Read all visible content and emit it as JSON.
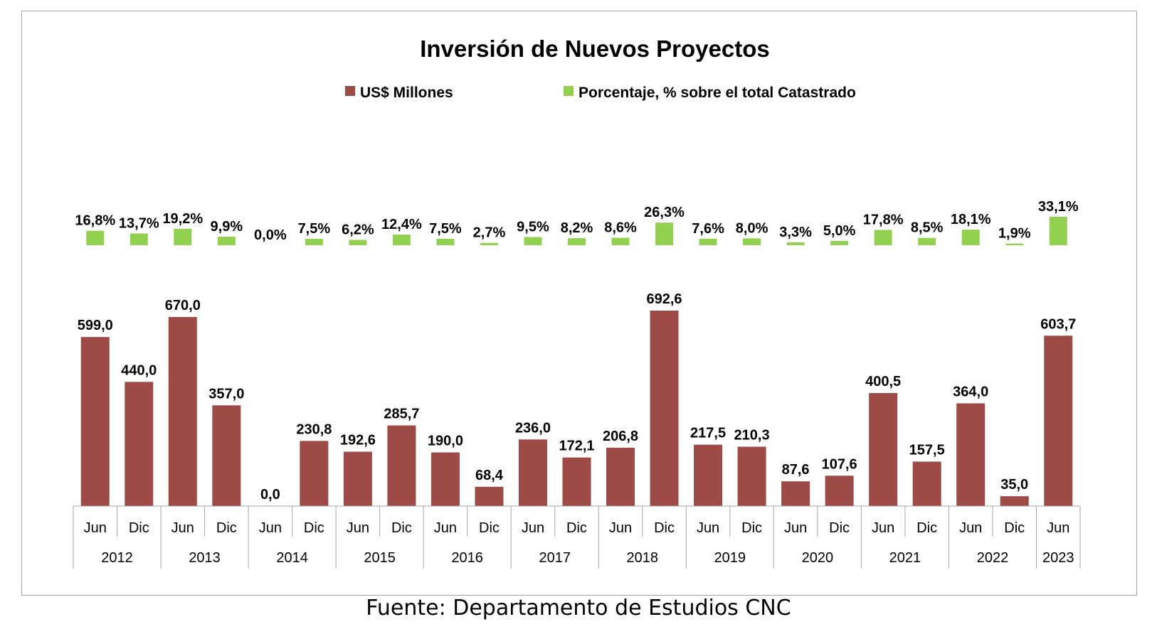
{
  "chart_data": {
    "type": "bar",
    "title": "Inversión de Nuevos Proyectos",
    "legend_position": "top",
    "categories": [
      {
        "period": "Jun",
        "year": "2012"
      },
      {
        "period": "Dic",
        "year": "2012"
      },
      {
        "period": "Jun",
        "year": "2013"
      },
      {
        "period": "Dic",
        "year": "2013"
      },
      {
        "period": "Jun",
        "year": "2014"
      },
      {
        "period": "Dic",
        "year": "2014"
      },
      {
        "period": "Jun",
        "year": "2015"
      },
      {
        "period": "Dic",
        "year": "2015"
      },
      {
        "period": "Jun",
        "year": "2016"
      },
      {
        "period": "Dic",
        "year": "2016"
      },
      {
        "period": "Jun",
        "year": "2017"
      },
      {
        "period": "Dic",
        "year": "2017"
      },
      {
        "period": "Jun",
        "year": "2018"
      },
      {
        "period": "Dic",
        "year": "2018"
      },
      {
        "period": "Jun",
        "year": "2019"
      },
      {
        "period": "Dic",
        "year": "2019"
      },
      {
        "period": "Jun",
        "year": "2020"
      },
      {
        "period": "Dic",
        "year": "2020"
      },
      {
        "period": "Jun",
        "year": "2021"
      },
      {
        "period": "Dic",
        "year": "2021"
      },
      {
        "period": "Jun",
        "year": "2022"
      },
      {
        "period": "Dic",
        "year": "2022"
      },
      {
        "period": "Jun",
        "year": "2023"
      }
    ],
    "years": [
      "2012",
      "2013",
      "2014",
      "2015",
      "2016",
      "2017",
      "2018",
      "2019",
      "2020",
      "2021",
      "2022",
      "2023"
    ],
    "series": [
      {
        "name": "US$ Millones",
        "color": "#9e4a47",
        "values": [
          599.0,
          440.0,
          670.0,
          357.0,
          0.0,
          230.8,
          192.6,
          285.7,
          190.0,
          68.4,
          236.0,
          172.1,
          206.8,
          692.6,
          217.5,
          210.3,
          87.6,
          107.6,
          400.5,
          157.5,
          364.0,
          35.0,
          603.7
        ],
        "labels": [
          "599,0",
          "440,0",
          "670,0",
          "357,0",
          "0,0",
          "230,8",
          "192,6",
          "285,7",
          "190,0",
          "68,4",
          "236,0",
          "172,1",
          "206,8",
          "692,6",
          "217,5",
          "210,3",
          "87,6",
          "107,6",
          "400,5",
          "157,5",
          "364,0",
          "35,0",
          "603,7"
        ]
      },
      {
        "name": "Porcentaje, % sobre el total Catastrado",
        "color": "#92d050",
        "values": [
          16.8,
          13.7,
          19.2,
          9.9,
          0.0,
          7.5,
          6.2,
          12.4,
          7.5,
          2.7,
          9.5,
          8.2,
          8.6,
          26.3,
          7.6,
          8.0,
          3.3,
          5.0,
          17.8,
          8.5,
          18.1,
          1.9,
          33.1
        ],
        "labels": [
          "16,8%",
          "13,7%",
          "19,2%",
          "9,9%",
          "0,0%",
          "7,5%",
          "6,2%",
          "12,4%",
          "7,5%",
          "2,7%",
          "9,5%",
          "8,2%",
          "8,6%",
          "26,3%",
          "7,6%",
          "8,0%",
          "3,3%",
          "5,0%",
          "17,8%",
          "8,5%",
          "18,1%",
          "1,9%",
          "33,1%"
        ]
      }
    ]
  },
  "source": "Fuente: Departamento de Estudios CNC"
}
